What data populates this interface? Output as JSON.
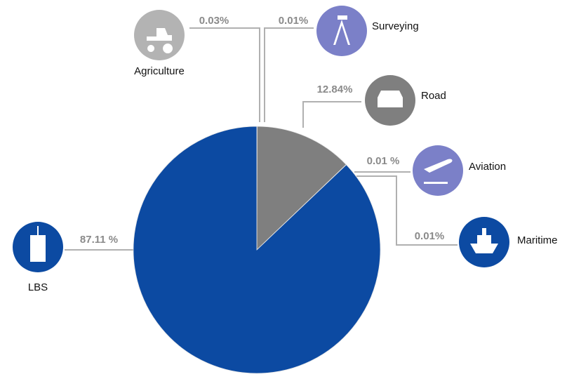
{
  "chart_data": {
    "type": "pie",
    "categories": [
      "Agriculture",
      "Surveying",
      "Road",
      "Aviation",
      "Maritime",
      "LBS"
    ],
    "values": [
      0.03,
      0.01,
      12.84,
      0.01,
      0.01,
      87.11
    ],
    "value_labels": [
      "0.03%",
      "0.01%",
      "12.84%",
      "0.01 %",
      "0.01%",
      "87.11 %"
    ],
    "colors": [
      "#b3b3b3",
      "#7b80c8",
      "#7f7f7f",
      "#7b80c8",
      "#0c4aa2",
      "#0c4aa2"
    ]
  }
}
